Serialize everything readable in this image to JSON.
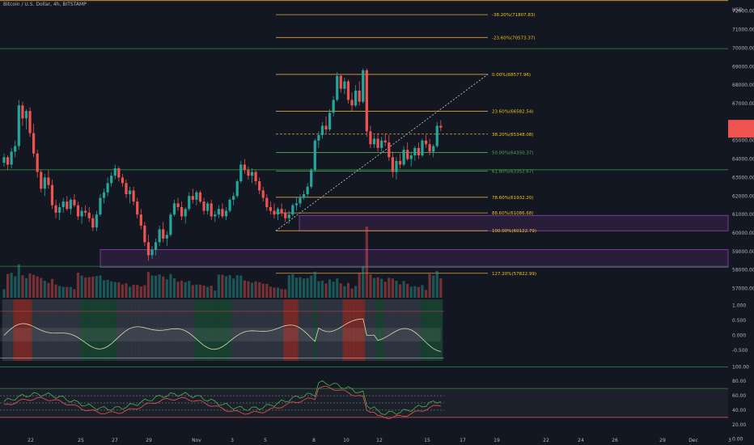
{
  "header": {
    "title": "Bitcoin / U.S. Dollar, 4h, BITSTAMP",
    "currency": "USD"
  },
  "colors": {
    "background": "#131722",
    "up": "#26a69a",
    "down": "#ef5350",
    "fib_line": "#e6a23c",
    "fib_label_yellow": "#f0c419",
    "fib_label_green": "#4caf50",
    "support_green": "#2e8b3e",
    "zone_purple": "#8e44ad",
    "price_tag": "#ef5350"
  },
  "chart_data": {
    "type": "candlestick",
    "symbol": "Bitcoin / U.S. Dollar",
    "interval": "4h",
    "exchange": "BITSTAMP",
    "price_axis": {
      "ticks": [
        "72000.00",
        "71000.00",
        "70000.00",
        "69000.00",
        "68000.00",
        "67000.00",
        "66000.00",
        "65000.00",
        "64000.00",
        "63000.00",
        "62000.00",
        "61000.00",
        "60000.00",
        "59000.00",
        "58000.00",
        "57000.00"
      ],
      "range": [
        56500,
        72600
      ]
    },
    "time_axis": {
      "labels": [
        "22",
        "25",
        "27",
        "29",
        "Nov",
        "3",
        "5",
        "8",
        "10",
        "12",
        "15",
        "17",
        "19",
        "22",
        "24",
        "26",
        "29",
        "Dec",
        "3"
      ]
    },
    "current_price": 65680,
    "fibonacci": {
      "levels": [
        {
          "label": "-38.20%(71807.83)",
          "value": 71807.83,
          "label_color": "yellow"
        },
        {
          "label": "-23.60%(70573.37)",
          "value": 70573.37,
          "label_color": "yellow"
        },
        {
          "label": "0.00%(68577.96)",
          "value": 68577.96,
          "label_color": "yellow"
        },
        {
          "label": "23.60%(66582.54)",
          "value": 66582.54,
          "label_color": "yellow"
        },
        {
          "label": "38.20%(65348.08)",
          "value": 65348.08,
          "label_color": "yellow"
        },
        {
          "label": "50.00%(64350.37)",
          "value": 64350.37,
          "label_color": "green"
        },
        {
          "label": "61.80%(63352.67)",
          "value": 63352.67,
          "label_color": "green"
        },
        {
          "label": "78.60%(61932.20)",
          "value": 61932.2,
          "label_color": "yellow"
        },
        {
          "label": "88.60%(61086.68)",
          "value": 61086.68,
          "label_color": "yellow"
        },
        {
          "label": "100.00%(60122.79)",
          "value": 60122.79,
          "label_color": "yellow"
        },
        {
          "label": "127.20%(57822.99)",
          "value": 57822.99,
          "label_color": "yellow"
        }
      ]
    },
    "horizontal_levels": [
      72570,
      69970,
      63420
    ],
    "zones": [
      {
        "low": 60120,
        "high": 60950
      },
      {
        "low": 58150,
        "high": 59100
      }
    ],
    "candles": [
      [
        63800,
        64300,
        63600,
        64100
      ],
      [
        64100,
        64200,
        63400,
        63700
      ],
      [
        63700,
        64600,
        63500,
        64400
      ],
      [
        64400,
        65000,
        64100,
        64700
      ],
      [
        64700,
        67200,
        64500,
        66900
      ],
      [
        66900,
        67100,
        65800,
        66200
      ],
      [
        66200,
        66700,
        65600,
        66600
      ],
      [
        66600,
        66800,
        65200,
        65400
      ],
      [
        65400,
        65900,
        64100,
        64300
      ],
      [
        64300,
        64500,
        63000,
        63300
      ],
      [
        63300,
        63400,
        62200,
        62400
      ],
      [
        62400,
        63200,
        62000,
        63000
      ],
      [
        63000,
        63400,
        62400,
        62600
      ],
      [
        62600,
        62900,
        61300,
        61500
      ],
      [
        61500,
        61800,
        60800,
        61100
      ],
      [
        61100,
        61600,
        60700,
        61400
      ],
      [
        61400,
        61900,
        61100,
        61700
      ],
      [
        61700,
        62000,
        61200,
        61300
      ],
      [
        61300,
        61900,
        61000,
        61800
      ],
      [
        61800,
        62100,
        61400,
        61500
      ],
      [
        61500,
        61700,
        60700,
        60900
      ],
      [
        60900,
        61400,
        60500,
        61200
      ],
      [
        61200,
        61500,
        60900,
        61100
      ],
      [
        61100,
        61400,
        60600,
        60800
      ],
      [
        60800,
        61000,
        60100,
        60300
      ],
      [
        60300,
        61200,
        60100,
        61000
      ],
      [
        61000,
        62100,
        60900,
        61900
      ],
      [
        61900,
        62400,
        61600,
        62200
      ],
      [
        62200,
        63000,
        62000,
        62700
      ],
      [
        62700,
        63300,
        62500,
        63100
      ],
      [
        63100,
        63700,
        62900,
        63500
      ],
      [
        63500,
        63600,
        62800,
        63000
      ],
      [
        63000,
        63200,
        62500,
        62700
      ],
      [
        62700,
        62900,
        61900,
        62100
      ],
      [
        62100,
        62500,
        61600,
        62300
      ],
      [
        62300,
        62500,
        61500,
        61700
      ],
      [
        61700,
        61900,
        60800,
        61000
      ],
      [
        61000,
        61300,
        60200,
        60400
      ],
      [
        60400,
        60600,
        59300,
        59500
      ],
      [
        59500,
        59900,
        58500,
        58800
      ],
      [
        58800,
        59300,
        58600,
        59100
      ],
      [
        59100,
        59700,
        58800,
        59500
      ],
      [
        59500,
        60400,
        59300,
        60200
      ],
      [
        60200,
        60600,
        59500,
        59700
      ],
      [
        59700,
        60100,
        59300,
        59900
      ],
      [
        59900,
        61100,
        59800,
        61000
      ],
      [
        61000,
        61800,
        60900,
        61600
      ],
      [
        61600,
        61900,
        61200,
        61400
      ],
      [
        61400,
        61700,
        60700,
        60900
      ],
      [
        60900,
        61400,
        60500,
        61300
      ],
      [
        61300,
        62200,
        61200,
        62000
      ],
      [
        62000,
        62400,
        61600,
        61800
      ],
      [
        61800,
        62300,
        61500,
        62200
      ],
      [
        62200,
        62300,
        61600,
        61700
      ],
      [
        61700,
        61900,
        61000,
        61200
      ],
      [
        61200,
        61700,
        61000,
        61600
      ],
      [
        61600,
        61800,
        60700,
        60900
      ],
      [
        60900,
        61200,
        60600,
        61000
      ],
      [
        61000,
        61500,
        60800,
        61300
      ],
      [
        61300,
        61600,
        60800,
        60900
      ],
      [
        60900,
        61400,
        60700,
        61200
      ],
      [
        61200,
        61900,
        61100,
        61800
      ],
      [
        61800,
        62200,
        61500,
        62000
      ],
      [
        62000,
        62900,
        61900,
        62800
      ],
      [
        62800,
        63900,
        62700,
        63700
      ],
      [
        63700,
        64000,
        63200,
        63400
      ],
      [
        63400,
        63600,
        62900,
        63100
      ],
      [
        63100,
        63500,
        62700,
        63300
      ],
      [
        63300,
        63400,
        62600,
        62800
      ],
      [
        62800,
        63000,
        62100,
        62300
      ],
      [
        62300,
        62500,
        61700,
        61900
      ],
      [
        61900,
        62100,
        61200,
        61400
      ],
      [
        61400,
        61700,
        61000,
        61200
      ],
      [
        61200,
        61600,
        60800,
        61000
      ],
      [
        61000,
        61400,
        60700,
        61300
      ],
      [
        61300,
        61600,
        60900,
        61100
      ],
      [
        61100,
        61300,
        60600,
        60800
      ],
      [
        60800,
        61200,
        60500,
        61000
      ],
      [
        61000,
        61600,
        60900,
        61500
      ],
      [
        61500,
        61900,
        61200,
        61600
      ],
      [
        61600,
        62100,
        61400,
        61900
      ],
      [
        61900,
        62300,
        61800,
        62100
      ],
      [
        62100,
        62700,
        61900,
        62500
      ],
      [
        62500,
        63500,
        62400,
        63400
      ],
      [
        63400,
        65100,
        63300,
        65000
      ],
      [
        65000,
        65500,
        64600,
        65300
      ],
      [
        65300,
        66000,
        65100,
        65800
      ],
      [
        65800,
        66300,
        65400,
        65600
      ],
      [
        65600,
        66700,
        65500,
        66500
      ],
      [
        66500,
        67400,
        66300,
        67200
      ],
      [
        67200,
        68700,
        67100,
        68500
      ],
      [
        68500,
        68600,
        67600,
        67800
      ],
      [
        67800,
        68400,
        67500,
        68200
      ],
      [
        68200,
        68300,
        67000,
        67200
      ],
      [
        67200,
        67600,
        66600,
        66900
      ],
      [
        66900,
        68000,
        66800,
        67700
      ],
      [
        67700,
        68200,
        66900,
        67100
      ],
      [
        67100,
        68900,
        67000,
        68800
      ],
      [
        68800,
        68900,
        65200,
        65500
      ],
      [
        65500,
        65800,
        64600,
        64800
      ],
      [
        64800,
        65300,
        64600,
        65100
      ],
      [
        65100,
        65400,
        64400,
        64600
      ],
      [
        64600,
        65200,
        64400,
        65000
      ],
      [
        65000,
        65400,
        64700,
        64900
      ],
      [
        64900,
        65300,
        63900,
        64100
      ],
      [
        64100,
        64400,
        63000,
        63300
      ],
      [
        63300,
        64100,
        62900,
        63900
      ],
      [
        63900,
        64300,
        63500,
        63700
      ],
      [
        63700,
        64700,
        63600,
        64500
      ],
      [
        64500,
        64900,
        63900,
        64000
      ],
      [
        64000,
        64400,
        63600,
        64200
      ],
      [
        64200,
        64700,
        63900,
        64600
      ],
      [
        64600,
        64900,
        64000,
        64200
      ],
      [
        64200,
        65100,
        64100,
        65000
      ],
      [
        65000,
        65300,
        64600,
        64800
      ],
      [
        64800,
        65100,
        64200,
        64400
      ],
      [
        64400,
        64800,
        64100,
        64700
      ],
      [
        64700,
        66000,
        64600,
        65800
      ],
      [
        65800,
        66100,
        65500,
        65700
      ]
    ]
  },
  "oscillator": {
    "ticks": [
      "1.000",
      "0.500",
      "0.000",
      "-0.500"
    ],
    "range": [
      -0.85,
      1.2
    ]
  },
  "rsi": {
    "ticks": [
      "100.00",
      "80.00",
      "60.00",
      "40.00",
      "20.00",
      "0.00"
    ],
    "range": [
      -6,
      106
    ]
  }
}
